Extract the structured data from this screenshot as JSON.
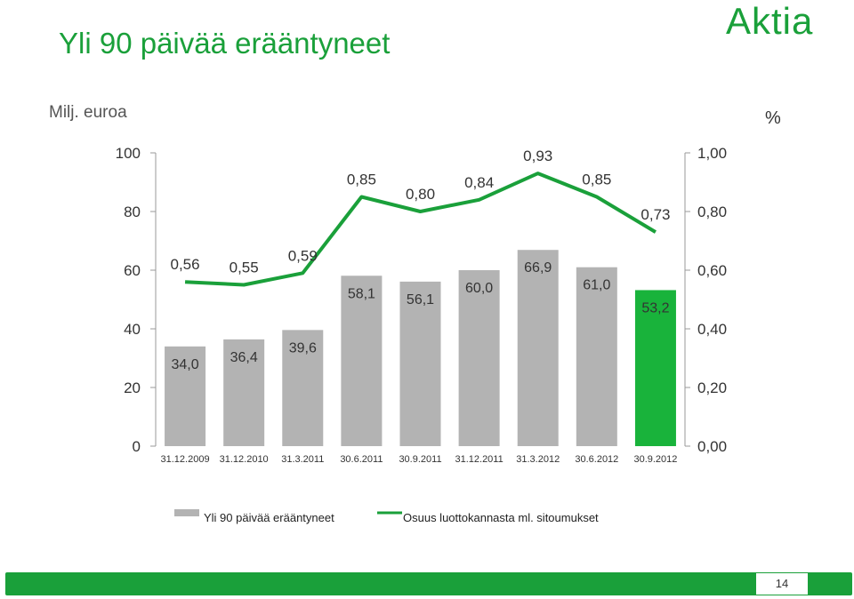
{
  "title": "Yli 90 päivää erääntyneet",
  "logo_text": "Aktia",
  "unit_left": "Milj. euroa",
  "unit_right": "%",
  "page_number": "14",
  "colors": {
    "brand": "#1aa03a",
    "bar": "#b3b3b3",
    "highlight_bar": "#19b33b",
    "line": "#1aa03a"
  },
  "chart_data": {
    "type": "bar",
    "categories": [
      "31.12.2009",
      "31.12.2010",
      "31.3.2011",
      "30.6.2011",
      "30.9.2011",
      "31.12.2011",
      "31.3.2012",
      "30.6.2012",
      "30.9.2012"
    ],
    "series": [
      {
        "name": "Yli 90 päivää erääntyneet",
        "type": "bar",
        "axis": "left",
        "values": [
          34.0,
          36.4,
          39.6,
          58.1,
          56.1,
          60.0,
          66.9,
          61.0,
          53.2
        ],
        "labels": [
          "34,0",
          "36,4",
          "39,6",
          "58,1",
          "56,1",
          "60,0",
          "66,9",
          "61,0",
          "53,2"
        ],
        "highlight_index": 8
      },
      {
        "name": "Osuus luottokannasta ml. sitoumukset",
        "type": "line",
        "axis": "right",
        "values": [
          0.56,
          0.55,
          0.59,
          0.85,
          0.8,
          0.84,
          0.93,
          0.85,
          0.73
        ],
        "labels": [
          "0,56",
          "0,55",
          "0,59",
          "0,85",
          "0,80",
          "0,84",
          "0,93",
          "0,85",
          "0,73"
        ]
      }
    ],
    "y_left": {
      "ylim": [
        0,
        100
      ],
      "ticks": [
        0,
        20,
        40,
        60,
        80,
        100
      ],
      "tick_labels": [
        "0",
        "20",
        "40",
        "60",
        "80",
        "100"
      ]
    },
    "y_right": {
      "ylim": [
        0,
        1.0
      ],
      "ticks": [
        0,
        0.2,
        0.4,
        0.6,
        0.8,
        1.0
      ],
      "tick_labels": [
        "0,00",
        "0,20",
        "0,40",
        "0,60",
        "0,80",
        "1,00"
      ]
    },
    "legend": "bottom",
    "grid": false
  }
}
